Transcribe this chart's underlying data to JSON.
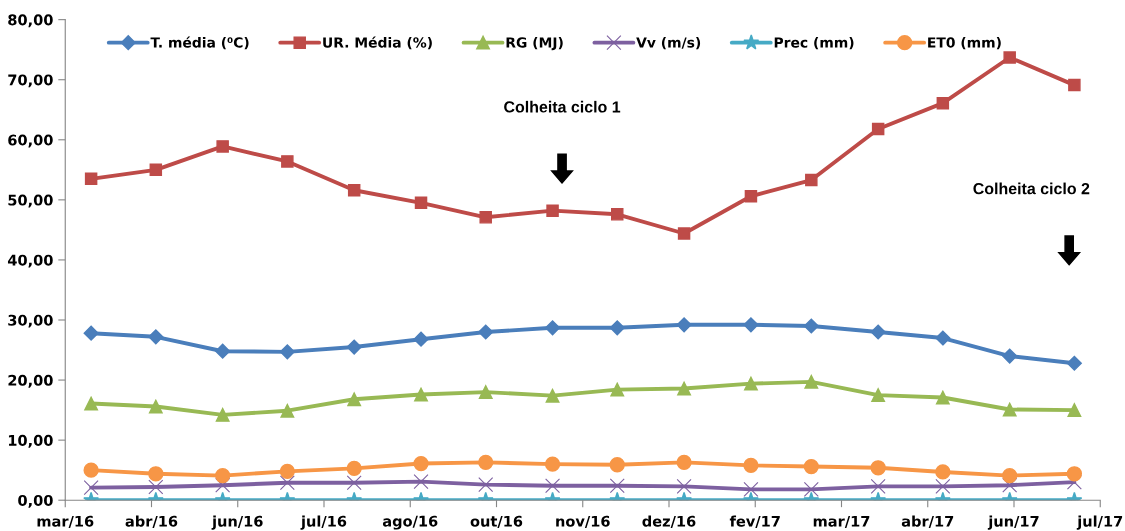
{
  "chart_data": {
    "type": "line",
    "x": [
      "2016-04-01",
      "2016-05-01",
      "2016-06-01",
      "2016-07-01",
      "2016-08-01",
      "2016-09-01",
      "2016-10-01",
      "2016-11-01",
      "2016-12-01",
      "2017-01-01",
      "2017-02-01",
      "2017-03-01",
      "2017-04-01",
      "2017-05-01",
      "2017-06-01",
      "2017-07-01"
    ],
    "series": [
      {
        "name": "T. média (⁰C)",
        "color": "#4a7ebb",
        "marker": "diamond",
        "values": [
          27.8,
          27.2,
          24.8,
          24.7,
          25.5,
          26.8,
          28.0,
          28.7,
          28.7,
          29.2,
          29.2,
          29.0,
          28.0,
          27.0,
          24.0,
          22.8
        ]
      },
      {
        "name": "UR. Média (%)",
        "color": "#be4b48",
        "marker": "square",
        "values": [
          53.5,
          55.0,
          58.9,
          56.4,
          51.6,
          49.5,
          47.1,
          48.2,
          47.6,
          44.4,
          50.6,
          53.3,
          61.8,
          66.1,
          73.7,
          69.1
        ]
      },
      {
        "name": "RG (MJ)",
        "color": "#98b954",
        "marker": "triangle",
        "values": [
          16.1,
          15.6,
          14.2,
          14.9,
          16.8,
          17.6,
          18.0,
          17.4,
          18.4,
          18.6,
          19.4,
          19.7,
          17.5,
          17.1,
          15.1,
          15.0
        ]
      },
      {
        "name": "Vv (m/s)",
        "color": "#7d60a0",
        "marker": "cross",
        "values": [
          2.1,
          2.2,
          2.5,
          2.9,
          2.9,
          3.1,
          2.6,
          2.4,
          2.4,
          2.3,
          1.8,
          1.8,
          2.3,
          2.3,
          2.5,
          3.0
        ]
      },
      {
        "name": "Prec (mm)",
        "color": "#46aac5",
        "marker": "star",
        "values": [
          0,
          0,
          0,
          0,
          0,
          0,
          0,
          0,
          0,
          0,
          0,
          0,
          0,
          0,
          0,
          0
        ]
      },
      {
        "name": "ET0 (mm)",
        "color": "#f79646",
        "marker": "circle",
        "values": [
          5.0,
          4.4,
          4.1,
          4.8,
          5.3,
          6.1,
          6.3,
          6.0,
          5.9,
          6.3,
          5.8,
          5.6,
          5.4,
          4.7,
          4.1,
          4.4
        ]
      }
    ],
    "xlim": [
      "2016-03-20",
      "2017-07-13"
    ],
    "xticks": [
      {
        "value": "2016-03-20",
        "label": "mar/16"
      },
      {
        "value": "2016-04-29",
        "label": "abr/16"
      },
      {
        "value": "2016-06-08",
        "label": "jun/16"
      },
      {
        "value": "2016-07-18",
        "label": "jul/16"
      },
      {
        "value": "2016-08-27",
        "label": "ago/16"
      },
      {
        "value": "2016-10-06",
        "label": "out/16"
      },
      {
        "value": "2016-11-15",
        "label": "nov/16"
      },
      {
        "value": "2016-12-25",
        "label": "dez/16"
      },
      {
        "value": "2017-02-03",
        "label": "fev/17"
      },
      {
        "value": "2017-03-15",
        "label": "mar/17"
      },
      {
        "value": "2017-04-24",
        "label": "abr/17"
      },
      {
        "value": "2017-06-03",
        "label": "jun/17"
      },
      {
        "value": "2017-07-13",
        "label": "jul/17"
      }
    ],
    "ylim": [
      0,
      80
    ],
    "yticks": [
      {
        "value": 0,
        "label": "0,00"
      },
      {
        "value": 10,
        "label": "10,00"
      },
      {
        "value": 20,
        "label": "20,00"
      },
      {
        "value": 30,
        "label": "30,00"
      },
      {
        "value": 40,
        "label": "40,00"
      },
      {
        "value": 50,
        "label": "50,00"
      },
      {
        "value": 60,
        "label": "60,00"
      },
      {
        "value": 70,
        "label": "70,00"
      },
      {
        "value": 80,
        "label": "80,00"
      }
    ],
    "annotations": [
      "Colheita ciclo 1",
      "Colheita ciclo 2"
    ],
    "grid": false,
    "legend": "top",
    "line_style": "solid"
  }
}
